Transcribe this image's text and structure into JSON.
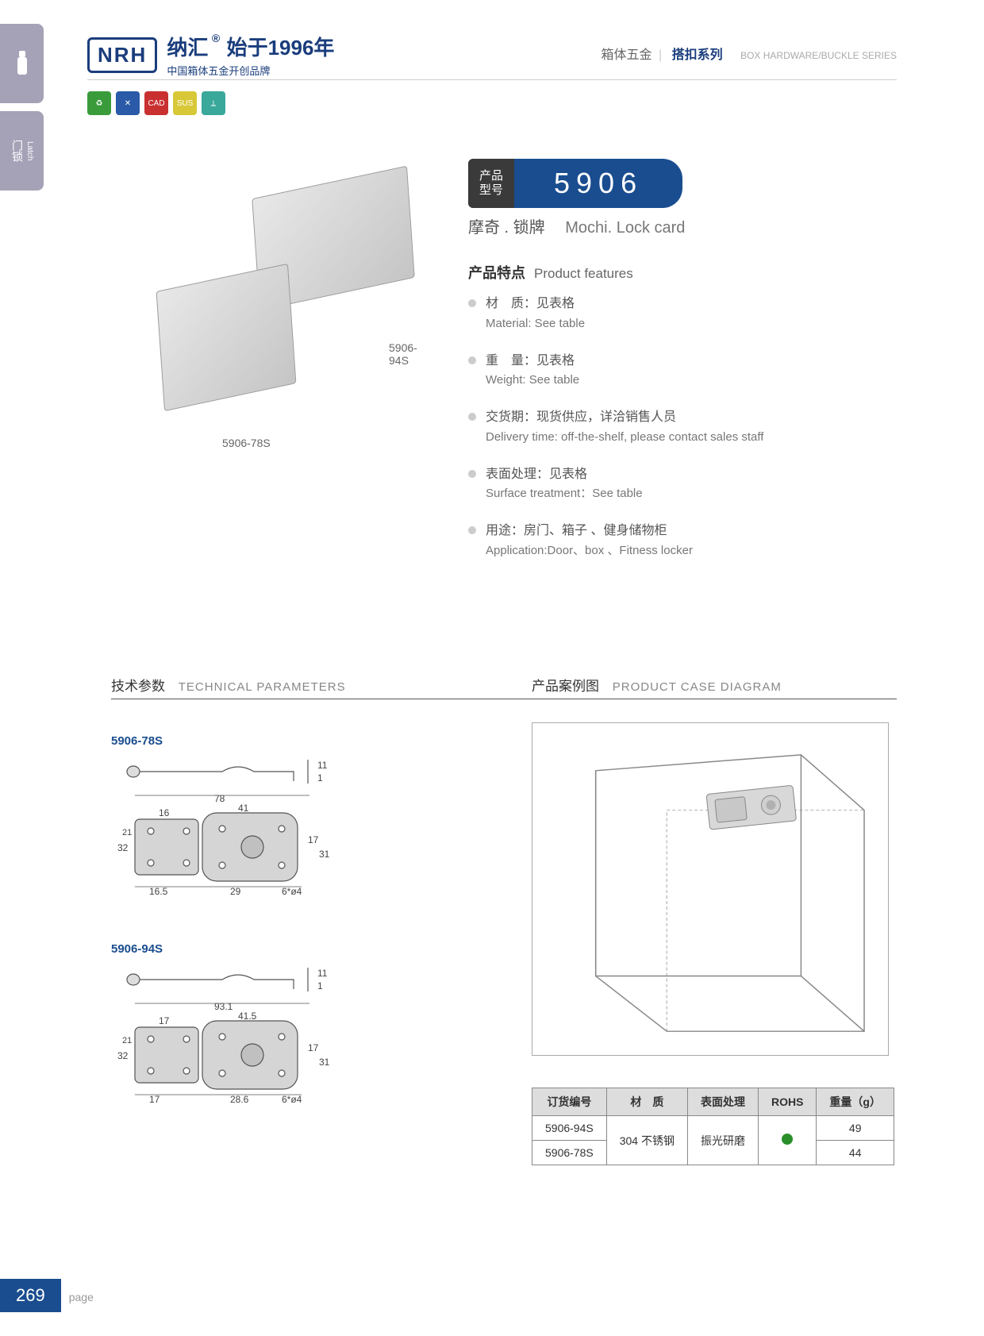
{
  "header": {
    "logo": "NRH",
    "brand_cn": "纳汇",
    "brand_tag": "始于1996年",
    "brand_sub": "中国箱体五金开创品牌",
    "category_cn1": "箱体五金",
    "category_cn2": "搭扣系列",
    "category_en": "BOX HARDWARE/BUCKLE SERIES"
  },
  "sidebar": {
    "tab2_cn": "门锁",
    "tab2_en": "Latch"
  },
  "icon_badges": [
    {
      "color": "#3a9b3a",
      "txt": "♻"
    },
    {
      "color": "#2a5aa8",
      "txt": "✕"
    },
    {
      "color": "#c93030",
      "txt": "CAD"
    },
    {
      "color": "#d8c838",
      "txt": "SUS"
    },
    {
      "color": "#3aa89b",
      "txt": "⟂"
    }
  ],
  "model": {
    "label_l1": "产品",
    "label_l2": "型号",
    "number": "5906",
    "name_cn": "摩奇 . 锁牌",
    "name_en": "Mochi. Lock card"
  },
  "product_images": {
    "label1": "5906-94S",
    "label2": "5906-78S"
  },
  "features": {
    "title_cn": "产品特点",
    "title_en": "Product features",
    "items": [
      {
        "cn": "材　质：见表格",
        "en": "Material: See table"
      },
      {
        "cn": "重　量：见表格",
        "en": "Weight: See table"
      },
      {
        "cn": "交货期：现货供应，详洽销售人员",
        "en": "Delivery time: off-the-shelf, please contact sales staff"
      },
      {
        "cn": "表面处理：见表格",
        "en": "Surface treatment：See table"
      },
      {
        "cn": "用途：房门、箱子 、健身储物柜",
        "en": "Application:Door、box 、Fitness locker"
      }
    ]
  },
  "tech": {
    "title_cn": "技术参数",
    "title_en": "TECHNICAL PARAMETERS",
    "diagrams": [
      {
        "label": "5906-78S",
        "dims": {
          "top_h": "11",
          "top_h2": "1",
          "width": "78",
          "w1": "16",
          "w2": "41",
          "h_outer": "32",
          "h_inner": "21",
          "h_r1": "17",
          "h_r2": "31",
          "bl": "16.5",
          "bm": "29",
          "hole": "6*ø4"
        }
      },
      {
        "label": "5906-94S",
        "dims": {
          "top_h": "11",
          "top_h2": "1",
          "width": "93.1",
          "w1": "17",
          "w2": "41.5",
          "h_outer": "32",
          "h_inner": "21",
          "h_r1": "17",
          "h_r2": "31",
          "bl": "17",
          "bm": "28.6",
          "hole": "6*ø4"
        }
      }
    ]
  },
  "case": {
    "title_cn": "产品案例图",
    "title_en": "PRODUCT CASE DIAGRAM"
  },
  "spec_table": {
    "headers": [
      "订货编号",
      "材　质",
      "表面处理",
      "ROHS",
      "重量（g）"
    ],
    "material": "304 不锈钢",
    "treatment": "振光研磨",
    "rows": [
      {
        "code": "5906-94S",
        "weight": "49"
      },
      {
        "code": "5906-78S",
        "weight": "44"
      }
    ]
  },
  "footer": {
    "page_num": "269",
    "page_label": "page"
  }
}
